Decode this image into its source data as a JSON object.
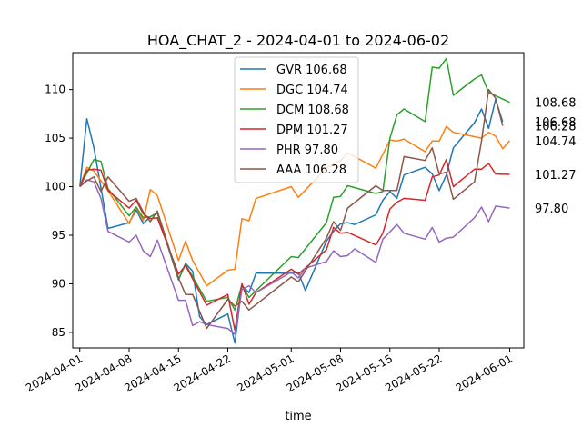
{
  "chart_data": {
    "type": "line",
    "title": "HOA_CHAT_2 - 2024-04-01 to 2024-06-02",
    "xlabel": "time",
    "ylabel": "",
    "x_range": [
      "2024-03-31",
      "2024-06-03"
    ],
    "ylim": [
      83.4,
      113.8
    ],
    "x_ticks": [
      "2024-04-01",
      "2024-04-08",
      "2024-04-15",
      "2024-04-22",
      "2024-05-01",
      "2024-05-08",
      "2024-05-15",
      "2024-05-22",
      "2024-06-01"
    ],
    "y_ticks": [
      85,
      90,
      95,
      100,
      105,
      110
    ],
    "grid": false,
    "legend_position": "top-center",
    "series": [
      {
        "name": "GVR 106.68",
        "end_label": "106.68",
        "color": "#1f77b4",
        "points": [
          [
            "2024-04-01",
            100.0
          ],
          [
            "2024-04-02",
            107.0
          ],
          [
            "2024-04-03",
            104.0
          ],
          [
            "2024-04-05",
            95.7
          ],
          [
            "2024-04-08",
            96.3
          ],
          [
            "2024-04-09",
            97.6
          ],
          [
            "2024-04-10",
            96.2
          ],
          [
            "2024-04-11",
            96.9
          ],
          [
            "2024-04-12",
            97.3
          ],
          [
            "2024-04-15",
            90.4
          ],
          [
            "2024-04-16",
            92.1
          ],
          [
            "2024-04-17",
            91.3
          ],
          [
            "2024-04-18",
            86.6
          ],
          [
            "2024-04-19",
            85.8
          ],
          [
            "2024-04-22",
            86.9
          ],
          [
            "2024-04-23",
            83.9
          ],
          [
            "2024-04-24",
            89.8
          ],
          [
            "2024-04-25",
            89.1
          ],
          [
            "2024-04-26",
            91.1
          ],
          [
            "2024-04-29",
            91.1
          ],
          [
            "2024-05-01",
            91.1
          ],
          [
            "2024-05-02",
            91.2
          ],
          [
            "2024-05-03",
            89.3
          ],
          [
            "2024-05-06",
            94.4
          ],
          [
            "2024-05-07",
            95.4
          ],
          [
            "2024-05-08",
            96.2
          ],
          [
            "2024-05-09",
            96.3
          ],
          [
            "2024-05-10",
            96.1
          ],
          [
            "2024-05-13",
            97.1
          ],
          [
            "2024-05-14",
            98.6
          ],
          [
            "2024-05-15",
            99.5
          ],
          [
            "2024-05-16",
            98.8
          ],
          [
            "2024-05-17",
            101.2
          ],
          [
            "2024-05-20",
            102.0
          ],
          [
            "2024-05-21",
            101.3
          ],
          [
            "2024-05-22",
            99.6
          ],
          [
            "2024-05-23",
            101.2
          ],
          [
            "2024-05-24",
            104.0
          ],
          [
            "2024-05-27",
            106.6
          ],
          [
            "2024-05-28",
            108.0
          ],
          [
            "2024-05-29",
            106.0
          ],
          [
            "2024-05-30",
            109.0
          ],
          [
            "2024-05-31",
            106.68
          ]
        ]
      },
      {
        "name": "DGC 104.74",
        "end_label": "104.74",
        "color": "#ff7f0e",
        "points": [
          [
            "2024-04-01",
            100.0
          ],
          [
            "2024-04-02",
            102.0
          ],
          [
            "2024-04-03",
            101.6
          ],
          [
            "2024-04-05",
            99.6
          ],
          [
            "2024-04-08",
            96.2
          ],
          [
            "2024-04-09",
            97.9
          ],
          [
            "2024-04-10",
            96.5
          ],
          [
            "2024-04-11",
            99.7
          ],
          [
            "2024-04-12",
            99.1
          ],
          [
            "2024-04-15",
            92.4
          ],
          [
            "2024-04-16",
            94.4
          ],
          [
            "2024-04-17",
            92.4
          ],
          [
            "2024-04-19",
            89.8
          ],
          [
            "2024-04-22",
            91.4
          ],
          [
            "2024-04-23",
            91.5
          ],
          [
            "2024-04-24",
            96.7
          ],
          [
            "2024-04-25",
            96.5
          ],
          [
            "2024-04-26",
            98.8
          ],
          [
            "2024-05-01",
            100.0
          ],
          [
            "2024-05-02",
            98.9
          ],
          [
            "2024-05-06",
            101.9
          ],
          [
            "2024-05-08",
            102.7
          ],
          [
            "2024-05-09",
            103.5
          ],
          [
            "2024-05-13",
            101.9
          ],
          [
            "2024-05-15",
            104.8
          ],
          [
            "2024-05-16",
            104.7
          ],
          [
            "2024-05-17",
            104.9
          ],
          [
            "2024-05-20",
            103.6
          ],
          [
            "2024-05-21",
            104.7
          ],
          [
            "2024-05-22",
            104.7
          ],
          [
            "2024-05-23",
            106.2
          ],
          [
            "2024-05-24",
            105.6
          ],
          [
            "2024-05-28",
            105.0
          ],
          [
            "2024-05-29",
            105.6
          ],
          [
            "2024-05-30",
            105.2
          ],
          [
            "2024-05-31",
            103.9
          ],
          [
            "2024-06-01",
            104.74
          ]
        ]
      },
      {
        "name": "DCM 108.68",
        "end_label": "108.68",
        "color": "#2ca02c",
        "points": [
          [
            "2024-04-01",
            100.0
          ],
          [
            "2024-04-02",
            101.4
          ],
          [
            "2024-04-03",
            102.8
          ],
          [
            "2024-04-04",
            102.6
          ],
          [
            "2024-04-05",
            99.8
          ],
          [
            "2024-04-08",
            97.0
          ],
          [
            "2024-04-09",
            97.9
          ],
          [
            "2024-04-10",
            96.8
          ],
          [
            "2024-04-11",
            96.9
          ],
          [
            "2024-04-12",
            97.3
          ],
          [
            "2024-04-15",
            90.5
          ],
          [
            "2024-04-16",
            92.0
          ],
          [
            "2024-04-19",
            88.2
          ],
          [
            "2024-04-22",
            88.6
          ],
          [
            "2024-04-23",
            87.3
          ],
          [
            "2024-04-24",
            89.9
          ],
          [
            "2024-04-25",
            88.6
          ],
          [
            "2024-05-01",
            92.8
          ],
          [
            "2024-05-02",
            92.7
          ],
          [
            "2024-05-06",
            96.3
          ],
          [
            "2024-05-07",
            98.9
          ],
          [
            "2024-05-08",
            99.0
          ],
          [
            "2024-05-09",
            100.1
          ],
          [
            "2024-05-13",
            99.3
          ],
          [
            "2024-05-14",
            99.5
          ],
          [
            "2024-05-15",
            105.0
          ],
          [
            "2024-05-16",
            107.4
          ],
          [
            "2024-05-17",
            108.0
          ],
          [
            "2024-05-20",
            106.7
          ],
          [
            "2024-05-21",
            112.3
          ],
          [
            "2024-05-22",
            112.2
          ],
          [
            "2024-05-23",
            113.2
          ],
          [
            "2024-05-24",
            109.4
          ],
          [
            "2024-05-27",
            111.1
          ],
          [
            "2024-05-28",
            111.5
          ],
          [
            "2024-05-29",
            109.7
          ],
          [
            "2024-06-01",
            108.68
          ]
        ]
      },
      {
        "name": "DPM 101.27",
        "end_label": "101.27",
        "color": "#d62728",
        "points": [
          [
            "2024-04-01",
            100.0
          ],
          [
            "2024-04-02",
            101.7
          ],
          [
            "2024-04-03",
            101.8
          ],
          [
            "2024-04-04",
            101.7
          ],
          [
            "2024-04-05",
            99.6
          ],
          [
            "2024-04-08",
            97.8
          ],
          [
            "2024-04-09",
            98.6
          ],
          [
            "2024-04-10",
            97.2
          ],
          [
            "2024-04-11",
            96.7
          ],
          [
            "2024-04-12",
            96.8
          ],
          [
            "2024-04-15",
            91.0
          ],
          [
            "2024-04-16",
            91.9
          ],
          [
            "2024-04-19",
            87.8
          ],
          [
            "2024-04-22",
            88.9
          ],
          [
            "2024-04-23",
            85.2
          ],
          [
            "2024-04-24",
            90.0
          ],
          [
            "2024-04-25",
            87.9
          ],
          [
            "2024-04-26",
            89.1
          ],
          [
            "2024-05-01",
            91.5
          ],
          [
            "2024-05-02",
            91.0
          ],
          [
            "2024-05-06",
            93.5
          ],
          [
            "2024-05-07",
            95.8
          ],
          [
            "2024-05-08",
            95.2
          ],
          [
            "2024-05-09",
            95.3
          ],
          [
            "2024-05-13",
            94.0
          ],
          [
            "2024-05-14",
            95.2
          ],
          [
            "2024-05-15",
            97.7
          ],
          [
            "2024-05-16",
            98.4
          ],
          [
            "2024-05-17",
            98.8
          ],
          [
            "2024-05-20",
            98.6
          ],
          [
            "2024-05-21",
            101.0
          ],
          [
            "2024-05-22",
            101.2
          ],
          [
            "2024-05-23",
            102.8
          ],
          [
            "2024-05-24",
            100.0
          ],
          [
            "2024-05-27",
            101.8
          ],
          [
            "2024-05-28",
            101.8
          ],
          [
            "2024-05-29",
            102.4
          ],
          [
            "2024-05-30",
            101.3
          ],
          [
            "2024-06-01",
            101.27
          ]
        ]
      },
      {
        "name": "PHR 97.80",
        "end_label": "97.80",
        "color": "#9467bd",
        "points": [
          [
            "2024-04-01",
            100.0
          ],
          [
            "2024-04-02",
            100.7
          ],
          [
            "2024-04-03",
            100.5
          ],
          [
            "2024-04-04",
            98.8
          ],
          [
            "2024-04-05",
            95.4
          ],
          [
            "2024-04-08",
            94.3
          ],
          [
            "2024-04-09",
            95.0
          ],
          [
            "2024-04-10",
            93.4
          ],
          [
            "2024-04-11",
            92.8
          ],
          [
            "2024-04-12",
            94.5
          ],
          [
            "2024-04-15",
            88.3
          ],
          [
            "2024-04-16",
            88.3
          ],
          [
            "2024-04-17",
            85.7
          ],
          [
            "2024-04-18",
            86.1
          ],
          [
            "2024-04-19",
            85.8
          ],
          [
            "2024-04-22",
            85.4
          ],
          [
            "2024-04-23",
            84.8
          ],
          [
            "2024-04-24",
            89.4
          ],
          [
            "2024-04-25",
            89.8
          ],
          [
            "2024-04-26",
            89.1
          ],
          [
            "2024-05-01",
            91.2
          ],
          [
            "2024-05-02",
            90.6
          ],
          [
            "2024-05-03",
            91.6
          ],
          [
            "2024-05-06",
            92.3
          ],
          [
            "2024-05-07",
            93.4
          ],
          [
            "2024-05-08",
            92.8
          ],
          [
            "2024-05-09",
            92.9
          ],
          [
            "2024-05-10",
            93.6
          ],
          [
            "2024-05-13",
            92.2
          ],
          [
            "2024-05-14",
            94.6
          ],
          [
            "2024-05-16",
            96.1
          ],
          [
            "2024-05-17",
            95.2
          ],
          [
            "2024-05-20",
            94.6
          ],
          [
            "2024-05-21",
            95.8
          ],
          [
            "2024-05-22",
            94.3
          ],
          [
            "2024-05-23",
            94.7
          ],
          [
            "2024-05-24",
            94.8
          ],
          [
            "2024-05-27",
            96.8
          ],
          [
            "2024-05-28",
            97.9
          ],
          [
            "2024-05-29",
            96.4
          ],
          [
            "2024-05-30",
            98.0
          ],
          [
            "2024-06-01",
            97.8
          ]
        ]
      },
      {
        "name": "AAA 106.28",
        "end_label": "106.28",
        "color": "#8c564b",
        "points": [
          [
            "2024-04-01",
            100.0
          ],
          [
            "2024-04-02",
            100.6
          ],
          [
            "2024-04-03",
            101.0
          ],
          [
            "2024-04-04",
            99.5
          ],
          [
            "2024-04-05",
            101.0
          ],
          [
            "2024-04-08",
            98.5
          ],
          [
            "2024-04-09",
            98.8
          ],
          [
            "2024-04-10",
            97.4
          ],
          [
            "2024-04-11",
            96.4
          ],
          [
            "2024-04-12",
            97.5
          ],
          [
            "2024-04-15",
            90.6
          ],
          [
            "2024-04-16",
            88.9
          ],
          [
            "2024-04-17",
            88.9
          ],
          [
            "2024-04-19",
            85.4
          ],
          [
            "2024-04-22",
            88.4
          ],
          [
            "2024-04-23",
            87.7
          ],
          [
            "2024-04-24",
            88.2
          ],
          [
            "2024-04-25",
            87.3
          ],
          [
            "2024-05-01",
            90.7
          ],
          [
            "2024-05-02",
            90.2
          ],
          [
            "2024-05-06",
            94.7
          ],
          [
            "2024-05-07",
            96.4
          ],
          [
            "2024-05-08",
            95.5
          ],
          [
            "2024-05-09",
            97.8
          ],
          [
            "2024-05-13",
            100.1
          ],
          [
            "2024-05-14",
            99.6
          ],
          [
            "2024-05-16",
            99.6
          ],
          [
            "2024-05-17",
            103.1
          ],
          [
            "2024-05-20",
            102.7
          ],
          [
            "2024-05-21",
            104.0
          ],
          [
            "2024-05-22",
            101.3
          ],
          [
            "2024-05-23",
            101.5
          ],
          [
            "2024-05-24",
            98.7
          ],
          [
            "2024-05-27",
            100.5
          ],
          [
            "2024-05-28",
            104.7
          ],
          [
            "2024-05-29",
            110.0
          ],
          [
            "2024-05-30",
            109.1
          ],
          [
            "2024-05-31",
            106.28
          ]
        ]
      }
    ]
  }
}
